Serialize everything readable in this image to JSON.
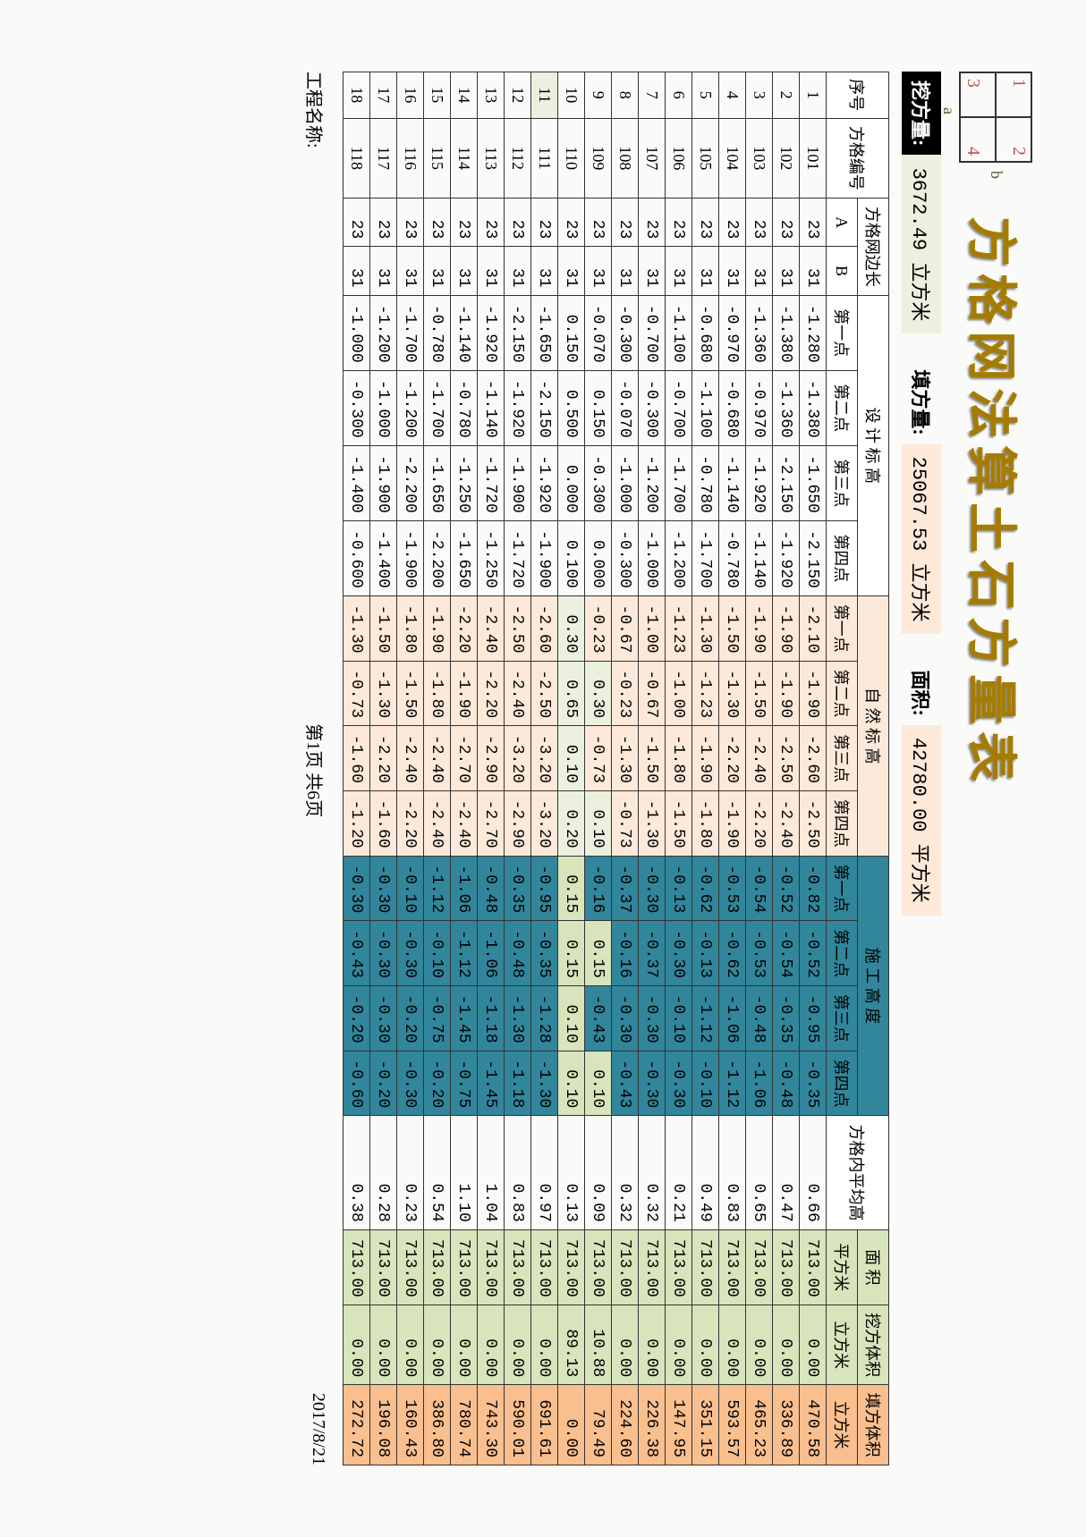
{
  "title": "方格网法算土石方量表",
  "miniGrid": {
    "c1": "1",
    "c2": "2",
    "c3": "3",
    "c4": "4",
    "a": "a",
    "b": "b"
  },
  "summary": {
    "cut_label": "挖方量:",
    "cut_value": "3672.49 立方米",
    "fill_label": "填方量:",
    "fill_value": "25067.53 立方米",
    "area_label": "面积:",
    "area_value": "42780.00 平方米"
  },
  "headers": {
    "seq": "序号",
    "gridNo": "方格编号",
    "edge": "方格网边长",
    "A": "A",
    "B": "B",
    "design": "设 计 标 高",
    "natural": "自 然 标 高",
    "construct": "施 工 高 度",
    "p1": "第一点",
    "p2": "第二点",
    "p3": "第三点",
    "p4": "第四点",
    "avg": "方格内平均高",
    "area": "面 积",
    "areaUnit": "平方米",
    "cutVol": "挖方体积",
    "fillVol": "填方体积",
    "volUnit": "立方米"
  },
  "rows": [
    {
      "seq": 1,
      "grid": "101",
      "A": 23,
      "B": 31,
      "d": [
        "-1.280",
        "-1.380",
        "-1.650",
        "-2.150"
      ],
      "n": [
        "-2.10",
        "-1.90",
        "-2.60",
        "-2.50"
      ],
      "c": [
        "-0.82",
        "-0.52",
        "-0.95",
        "-0.35"
      ],
      "avg": "0.66",
      "area": "713.00",
      "cut": "0.00",
      "fill": "470.58"
    },
    {
      "seq": 2,
      "grid": "102",
      "A": 23,
      "B": 31,
      "d": [
        "-1.380",
        "-1.360",
        "-2.150",
        "-1.920"
      ],
      "n": [
        "-1.90",
        "-1.90",
        "-2.50",
        "-2.40"
      ],
      "c": [
        "-0.52",
        "-0.54",
        "-0.35",
        "-0.48"
      ],
      "avg": "0.47",
      "area": "713.00",
      "cut": "0.00",
      "fill": "336.89"
    },
    {
      "seq": 3,
      "grid": "103",
      "A": 23,
      "B": 31,
      "d": [
        "-1.360",
        "-0.970",
        "-1.920",
        "-1.140"
      ],
      "n": [
        "-1.90",
        "-1.50",
        "-2.40",
        "-2.20"
      ],
      "c": [
        "-0.54",
        "-0.53",
        "-0.48",
        "-1.06"
      ],
      "avg": "0.65",
      "area": "713.00",
      "cut": "0.00",
      "fill": "465.23"
    },
    {
      "seq": 4,
      "grid": "104",
      "A": 23,
      "B": 31,
      "d": [
        "-0.970",
        "-0.680",
        "-1.140",
        "-0.780"
      ],
      "n": [
        "-1.50",
        "-1.30",
        "-2.20",
        "-1.90"
      ],
      "c": [
        "-0.53",
        "-0.62",
        "-1.06",
        "-1.12"
      ],
      "avg": "0.83",
      "area": "713.00",
      "cut": "0.00",
      "fill": "593.57"
    },
    {
      "seq": 5,
      "grid": "105",
      "A": 23,
      "B": 31,
      "d": [
        "-0.680",
        "-1.100",
        "-0.780",
        "-1.700"
      ],
      "n": [
        "-1.30",
        "-1.23",
        "-1.90",
        "-1.80"
      ],
      "c": [
        "-0.62",
        "-0.13",
        "-1.12",
        "-0.10"
      ],
      "avg": "0.49",
      "area": "713.00",
      "cut": "0.00",
      "fill": "351.15"
    },
    {
      "seq": 6,
      "grid": "106",
      "A": 23,
      "B": 31,
      "d": [
        "-1.100",
        "-0.700",
        "-1.700",
        "-1.200"
      ],
      "n": [
        "-1.23",
        "-1.00",
        "-1.80",
        "-1.50"
      ],
      "c": [
        "-0.13",
        "-0.30",
        "-0.10",
        "-0.30"
      ],
      "avg": "0.21",
      "area": "713.00",
      "cut": "0.00",
      "fill": "147.95"
    },
    {
      "seq": 7,
      "grid": "107",
      "A": 23,
      "B": 31,
      "d": [
        "-0.700",
        "-0.300",
        "-1.200",
        "-1.000"
      ],
      "n": [
        "-1.00",
        "-0.67",
        "-1.50",
        "-1.30"
      ],
      "c": [
        "-0.30",
        "-0.37",
        "-0.30",
        "-0.30"
      ],
      "avg": "0.32",
      "area": "713.00",
      "cut": "0.00",
      "fill": "226.38"
    },
    {
      "seq": 8,
      "grid": "108",
      "A": 23,
      "B": 31,
      "d": [
        "-0.300",
        "-0.070",
        "-1.000",
        "-0.300"
      ],
      "n": [
        "-0.67",
        "-0.23",
        "-1.30",
        "-0.73"
      ],
      "c": [
        "-0.37",
        "-0.16",
        "-0.30",
        "-0.43"
      ],
      "avg": "0.32",
      "area": "713.00",
      "cut": "0.00",
      "fill": "224.60"
    },
    {
      "seq": 9,
      "grid": "109",
      "A": 23,
      "B": 31,
      "d": [
        "-0.070",
        "0.150",
        "-0.300",
        "0.000"
      ],
      "n": [
        "-0.23",
        "0.30",
        "-0.73",
        "0.10"
      ],
      "c": [
        "-0.16",
        "0.15",
        "-0.43",
        "0.10"
      ],
      "avg": "0.09",
      "area": "713.00",
      "cut": "10.88",
      "fill": "79.49"
    },
    {
      "seq": 10,
      "grid": "110",
      "A": 23,
      "B": 31,
      "d": [
        "0.150",
        "0.500",
        "0.000",
        "0.100"
      ],
      "n": [
        "0.30",
        "0.65",
        "0.10",
        "0.20"
      ],
      "c": [
        "0.15",
        "0.15",
        "0.10",
        "0.10"
      ],
      "avg": "0.13",
      "area": "713.00",
      "cut": "89.13",
      "fill": "0.00"
    },
    {
      "seq": 11,
      "grid": "111",
      "A": 23,
      "B": 31,
      "d": [
        "-1.650",
        "-2.150",
        "-1.920",
        "-1.900"
      ],
      "n": [
        "-2.60",
        "-2.50",
        "-3.20",
        "-3.20"
      ],
      "c": [
        "-0.95",
        "-0.35",
        "-1.28",
        "-1.30"
      ],
      "avg": "0.97",
      "area": "713.00",
      "cut": "0.00",
      "fill": "691.61",
      "hl": true
    },
    {
      "seq": 12,
      "grid": "112",
      "A": 23,
      "B": 31,
      "d": [
        "-2.150",
        "-1.920",
        "-1.900",
        "-1.720"
      ],
      "n": [
        "-2.50",
        "-2.40",
        "-3.20",
        "-2.90"
      ],
      "c": [
        "-0.35",
        "-0.48",
        "-1.30",
        "-1.18"
      ],
      "avg": "0.83",
      "area": "713.00",
      "cut": "0.00",
      "fill": "590.01"
    },
    {
      "seq": 13,
      "grid": "113",
      "A": 23,
      "B": 31,
      "d": [
        "-1.920",
        "-1.140",
        "-1.720",
        "-1.250"
      ],
      "n": [
        "-2.40",
        "-2.20",
        "-2.90",
        "-2.70"
      ],
      "c": [
        "-0.48",
        "-1.06",
        "-1.18",
        "-1.45"
      ],
      "avg": "1.04",
      "area": "713.00",
      "cut": "0.00",
      "fill": "743.30"
    },
    {
      "seq": 14,
      "grid": "114",
      "A": 23,
      "B": 31,
      "d": [
        "-1.140",
        "-0.780",
        "-1.250",
        "-1.650"
      ],
      "n": [
        "-2.20",
        "-1.90",
        "-2.70",
        "-2.40"
      ],
      "c": [
        "-1.06",
        "-1.12",
        "-1.45",
        "-0.75"
      ],
      "avg": "1.10",
      "area": "713.00",
      "cut": "0.00",
      "fill": "780.74"
    },
    {
      "seq": 15,
      "grid": "115",
      "A": 23,
      "B": 31,
      "d": [
        "-0.780",
        "-1.700",
        "-1.650",
        "-2.200"
      ],
      "n": [
        "-1.90",
        "-1.80",
        "-2.40",
        "-2.40"
      ],
      "c": [
        "-1.12",
        "-0.10",
        "-0.75",
        "-0.20"
      ],
      "avg": "0.54",
      "area": "713.00",
      "cut": "0.00",
      "fill": "386.80"
    },
    {
      "seq": 16,
      "grid": "116",
      "A": 23,
      "B": 31,
      "d": [
        "-1.700",
        "-1.200",
        "-2.200",
        "-1.900"
      ],
      "n": [
        "-1.80",
        "-1.50",
        "-2.40",
        "-2.20"
      ],
      "c": [
        "-0.10",
        "-0.30",
        "-0.20",
        "-0.30"
      ],
      "avg": "0.23",
      "area": "713.00",
      "cut": "0.00",
      "fill": "160.43"
    },
    {
      "seq": 17,
      "grid": "117",
      "A": 23,
      "B": 31,
      "d": [
        "-1.200",
        "-1.000",
        "-1.900",
        "-1.400"
      ],
      "n": [
        "-1.50",
        "-1.30",
        "-2.20",
        "-1.60"
      ],
      "c": [
        "-0.30",
        "-0.30",
        "-0.30",
        "-0.20"
      ],
      "avg": "0.28",
      "area": "713.00",
      "cut": "0.00",
      "fill": "196.08"
    },
    {
      "seq": 18,
      "grid": "118",
      "A": 23,
      "B": 31,
      "d": [
        "-1.000",
        "-0.300",
        "-1.400",
        "-0.600"
      ],
      "n": [
        "-1.30",
        "-0.73",
        "-1.60",
        "-1.20"
      ],
      "c": [
        "-0.30",
        "-0.43",
        "-0.20",
        "-0.60"
      ],
      "avg": "0.38",
      "area": "713.00",
      "cut": "0.00",
      "fill": "272.72"
    }
  ],
  "specialCells": {
    "9": {
      "c2": "green",
      "c4": "green",
      "n2": "light",
      "n4": "light"
    },
    "10": {
      "c1": "green",
      "c2": "green",
      "c3": "green",
      "c4": "green",
      "n1": "light",
      "n2": "light",
      "n3": "light",
      "n4": "light"
    }
  },
  "footer": {
    "project": "工程名称:",
    "page": "第1页   共6页",
    "date": "2017/8/21"
  }
}
